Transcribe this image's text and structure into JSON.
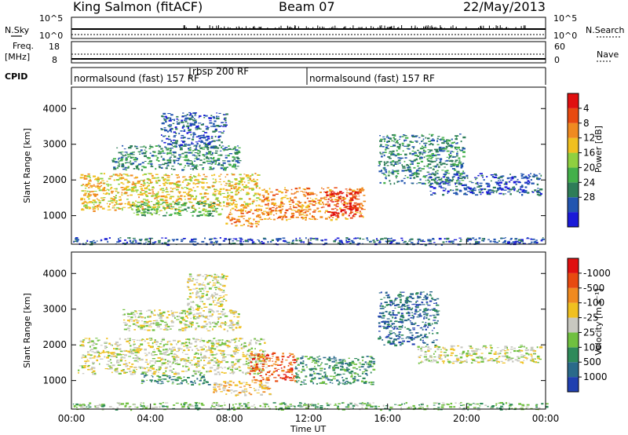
{
  "header": {
    "station": "King Salmon (fitACF)",
    "beam": "Beam 07",
    "date": "22/May/2013"
  },
  "status_panels": {
    "nsky_label": "N.Sky",
    "nsearch_label": "N.Search",
    "freq_label": "Freq.",
    "freq_unit": "[MHz]",
    "nave_label": "Nave",
    "cpid_label": "CPID",
    "nsky_ticks": [
      "10^5",
      "10^0"
    ],
    "nsearch_ticks": [
      "10^5",
      "10^0"
    ],
    "freq_ticks": [
      "18",
      "8"
    ],
    "nave_ticks": [
      "60",
      "0"
    ],
    "cpid_segments": [
      {
        "label": "normalsound (fast) 157 RF",
        "start_hour": 0,
        "end_hour": 5.7
      },
      {
        "label": "rbsp 200 RF",
        "start_hour": 5.7,
        "end_hour": 12.0
      },
      {
        "label": "normalsound (fast) 157 RF",
        "start_hour": 12.0,
        "end_hour": 24.0
      }
    ]
  },
  "chart_data": [
    {
      "type": "heatmap",
      "title": "",
      "ylabel": "Slant Range [km]",
      "xlabel": "",
      "xlim": [
        0,
        24
      ],
      "ylim": [
        200,
        4600
      ],
      "yticks": [
        1000,
        2000,
        3000,
        4000
      ],
      "colorbar_label": "Power [dB]",
      "colorbar_ticks": [
        "4",
        "8",
        "12",
        "16",
        "20",
        "24",
        "28"
      ],
      "colorbar_colors": [
        "#1a1ad8",
        "#2255b0",
        "#2e7d58",
        "#43b04a",
        "#8fd040",
        "#f0c020",
        "#f08a20",
        "#e84a10",
        "#e01010"
      ],
      "echo_regions": [
        {
          "t0": 0.4,
          "t1": 9.5,
          "r0": 1150,
          "r1": 2200,
          "level": 5
        },
        {
          "t0": 2.0,
          "t1": 8.5,
          "r0": 2300,
          "r1": 3000,
          "level": 2
        },
        {
          "t0": 4.5,
          "t1": 7.8,
          "r0": 2900,
          "r1": 3900,
          "level": 1
        },
        {
          "t0": 3.0,
          "t1": 7.5,
          "r0": 1000,
          "r1": 1400,
          "level": 3
        },
        {
          "t0": 7.8,
          "t1": 9.5,
          "r0": 700,
          "r1": 1200,
          "level": 6
        },
        {
          "t0": 9.5,
          "t1": 14.8,
          "r0": 900,
          "r1": 1800,
          "level": 6
        },
        {
          "t0": 12.8,
          "t1": 14.4,
          "r0": 1000,
          "r1": 1700,
          "level": 8
        },
        {
          "t0": 15.5,
          "t1": 19.8,
          "r0": 1900,
          "r1": 3300,
          "level": 2
        },
        {
          "t0": 18.0,
          "t1": 23.8,
          "r0": 1600,
          "r1": 2200,
          "level": 1
        },
        {
          "t0": 0.0,
          "t1": 24.0,
          "r0": 200,
          "r1": 400,
          "level": 1
        }
      ]
    },
    {
      "type": "heatmap",
      "title": "",
      "ylabel": "Slant Range [km]",
      "xlabel": "Time UT",
      "xlim": [
        0,
        24
      ],
      "ylim": [
        200,
        4600
      ],
      "yticks": [
        1000,
        2000,
        3000,
        4000
      ],
      "xticks": [
        "00:00",
        "04:00",
        "08:00",
        "12:00",
        "16:00",
        "20:00",
        "00:00"
      ],
      "colorbar_label": "Velocity [m s⁻¹]",
      "colorbar_ticks": [
        "1000",
        "500",
        "100",
        "25",
        "-25",
        "-100",
        "-500",
        "-1000"
      ],
      "colorbar_colors": [
        "#2040b0",
        "#2a6a8a",
        "#2e8a5a",
        "#70c040",
        "#c8c8c0",
        "#f0c020",
        "#f08a20",
        "#e84a10",
        "#e01010"
      ],
      "echo_regions": [
        {
          "t0": 0.3,
          "t1": 9.8,
          "r0": 1200,
          "r1": 2200,
          "level": 4
        },
        {
          "t0": 2.5,
          "t1": 8.5,
          "r0": 2400,
          "r1": 3000,
          "level": 4
        },
        {
          "t0": 5.8,
          "t1": 7.8,
          "r0": 3000,
          "r1": 4000,
          "level": 4
        },
        {
          "t0": 3.5,
          "t1": 7.0,
          "r0": 900,
          "r1": 1200,
          "level": 2
        },
        {
          "t0": 7.0,
          "t1": 10.0,
          "r0": 600,
          "r1": 1000,
          "level": 5
        },
        {
          "t0": 9.0,
          "t1": 11.3,
          "r0": 1000,
          "r1": 1800,
          "level": 7
        },
        {
          "t0": 11.3,
          "t1": 15.3,
          "r0": 900,
          "r1": 1700,
          "level": 2
        },
        {
          "t0": 15.5,
          "t1": 18.5,
          "r0": 2000,
          "r1": 3500,
          "level": 1
        },
        {
          "t0": 17.5,
          "t1": 23.8,
          "r0": 1500,
          "r1": 2000,
          "level": 4
        },
        {
          "t0": 0.0,
          "t1": 24.0,
          "r0": 200,
          "r1": 400,
          "level": 3
        }
      ]
    }
  ]
}
